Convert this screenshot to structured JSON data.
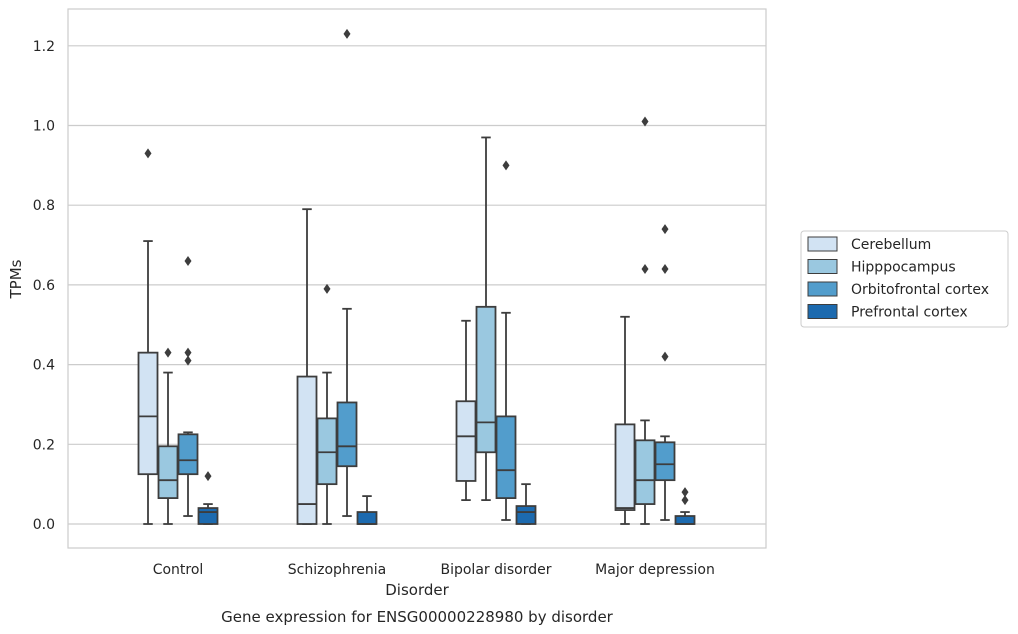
{
  "chart_data": {
    "type": "box",
    "title": "",
    "caption": "Gene expression for ENSG00000228980 by disorder",
    "xlabel": "Disorder",
    "ylabel": "TPMs",
    "ylim": [
      -0.06,
      1.29
    ],
    "yticks": [
      0.0,
      0.2,
      0.4,
      0.6,
      0.8,
      1.0,
      1.2
    ],
    "ytick_labels": [
      "0.0",
      "0.2",
      "0.4",
      "0.6",
      "0.8",
      "1.0",
      "1.2"
    ],
    "grid": "horizontal",
    "legend_position": "right",
    "categories": [
      "Control",
      "Schizophrenia",
      "Bipolar disorder",
      "Major depression"
    ],
    "series": [
      {
        "name": "Cerebellum",
        "color": "#d2e3f3",
        "boxes": [
          {
            "whislo": 0.0,
            "q1": 0.125,
            "med": 0.27,
            "q3": 0.43,
            "whishi": 0.71,
            "fliers": [
              0.93
            ]
          },
          {
            "whislo": 0.0,
            "q1": 0.0,
            "med": 0.05,
            "q3": 0.37,
            "whishi": 0.79,
            "fliers": []
          },
          {
            "whislo": 0.06,
            "q1": 0.108,
            "med": 0.22,
            "q3": 0.308,
            "whishi": 0.51,
            "fliers": []
          },
          {
            "whislo": 0.0,
            "q1": 0.035,
            "med": 0.04,
            "q3": 0.25,
            "whishi": 0.52,
            "fliers": []
          }
        ]
      },
      {
        "name": "Hipppocampus",
        "color": "#9ac8e0",
        "boxes": [
          {
            "whislo": 0.0,
            "q1": 0.065,
            "med": 0.11,
            "q3": 0.195,
            "whishi": 0.38,
            "fliers": [
              0.43
            ]
          },
          {
            "whislo": 0.0,
            "q1": 0.1,
            "med": 0.18,
            "q3": 0.265,
            "whishi": 0.38,
            "fliers": [
              0.59
            ]
          },
          {
            "whislo": 0.06,
            "q1": 0.18,
            "med": 0.255,
            "q3": 0.545,
            "whishi": 0.97,
            "fliers": []
          },
          {
            "whislo": 0.0,
            "q1": 0.05,
            "med": 0.11,
            "q3": 0.21,
            "whishi": 0.26,
            "fliers": [
              0.64,
              1.01
            ]
          }
        ]
      },
      {
        "name": "Orbitofrontal cortex",
        "color": "#529dcc",
        "boxes": [
          {
            "whislo": 0.02,
            "q1": 0.125,
            "med": 0.16,
            "q3": 0.225,
            "whishi": 0.23,
            "fliers": [
              0.41,
              0.43,
              0.66
            ]
          },
          {
            "whislo": 0.02,
            "q1": 0.145,
            "med": 0.195,
            "q3": 0.305,
            "whishi": 0.54,
            "fliers": [
              1.23
            ]
          },
          {
            "whislo": 0.01,
            "q1": 0.065,
            "med": 0.135,
            "q3": 0.27,
            "whishi": 0.53,
            "fliers": [
              0.9
            ]
          },
          {
            "whislo": 0.01,
            "q1": 0.11,
            "med": 0.15,
            "q3": 0.205,
            "whishi": 0.22,
            "fliers": [
              0.42,
              0.64,
              0.74
            ]
          }
        ]
      },
      {
        "name": "Prefrontal cortex",
        "color": "#1c6aaf",
        "boxes": [
          {
            "whislo": 0.0,
            "q1": 0.0,
            "med": 0.03,
            "q3": 0.04,
            "whishi": 0.05,
            "fliers": [
              0.12
            ]
          },
          {
            "whislo": 0.0,
            "q1": 0.0,
            "med": 0.0,
            "q3": 0.03,
            "whishi": 0.07,
            "fliers": []
          },
          {
            "whislo": 0.0,
            "q1": 0.0,
            "med": 0.03,
            "q3": 0.045,
            "whishi": 0.1,
            "fliers": []
          },
          {
            "whislo": 0.0,
            "q1": 0.0,
            "med": 0.0,
            "q3": 0.02,
            "whishi": 0.03,
            "fliers": [
              0.06,
              0.08
            ]
          }
        ]
      }
    ]
  }
}
